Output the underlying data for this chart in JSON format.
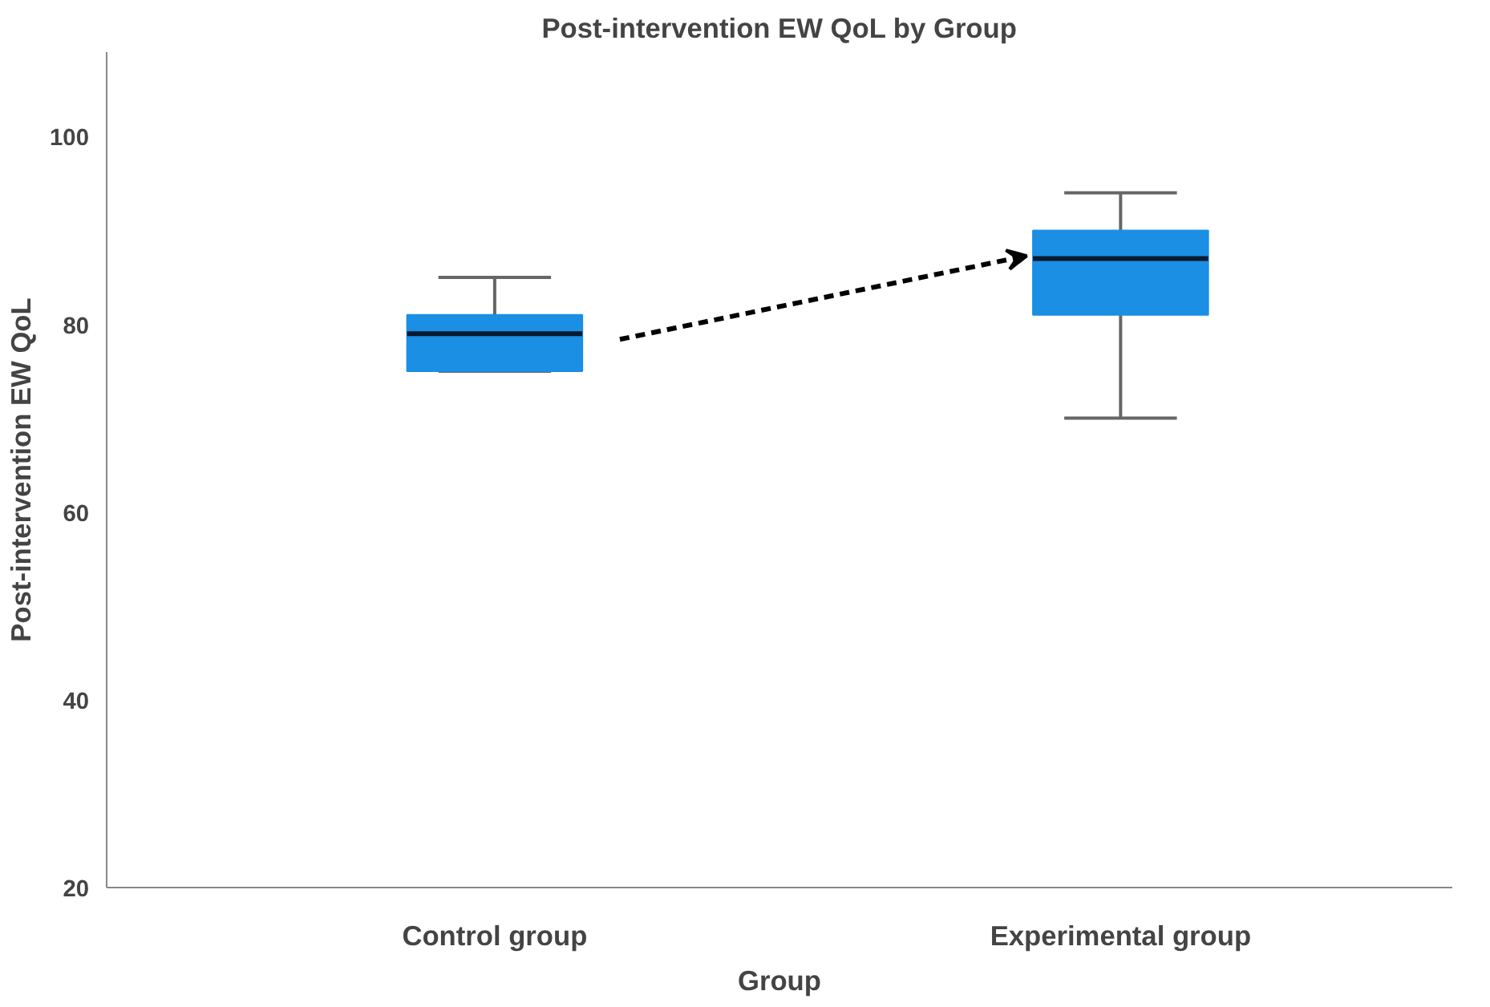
{
  "chart_data": {
    "type": "box",
    "title": "Post-intervention EW QoL by Group",
    "xlabel": "Group",
    "ylabel": "Post-intervention EW QoL",
    "categories": [
      "Control group",
      "Experimental group"
    ],
    "boxes": [
      {
        "low": 75,
        "q1": 75,
        "median": 79,
        "q3": 81,
        "high": 85
      },
      {
        "low": 70,
        "q1": 81,
        "median": 87,
        "q3": 90,
        "high": 94
      }
    ],
    "color": "#1a8fe3",
    "ylim": [
      20,
      109
    ],
    "yticks": [
      20,
      40,
      60,
      80,
      100
    ],
    "grid": false
  }
}
